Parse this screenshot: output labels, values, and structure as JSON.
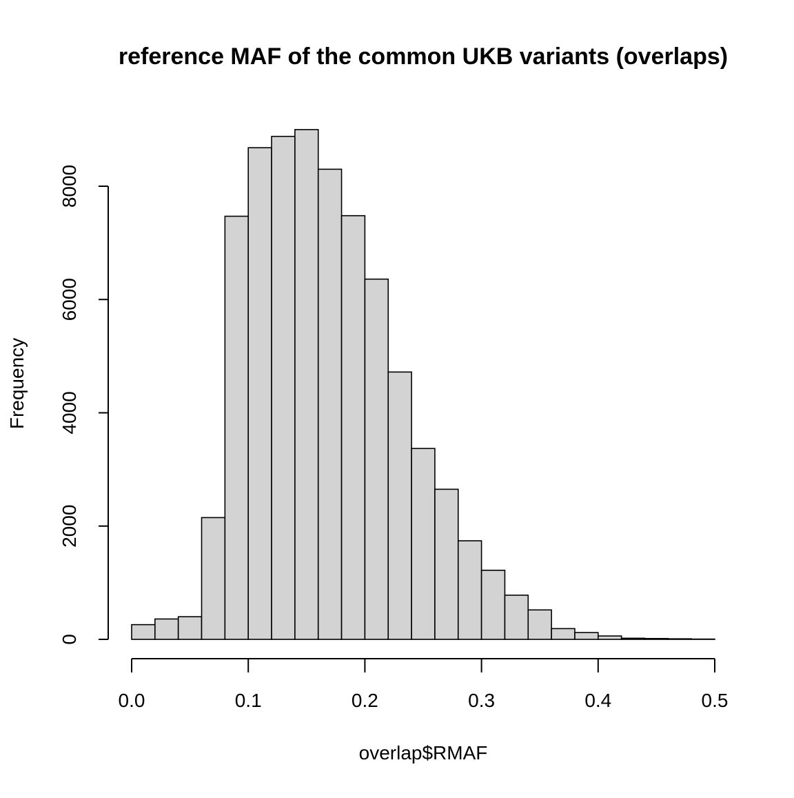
{
  "chart_data": {
    "type": "bar",
    "subtype": "histogram",
    "title": "reference MAF of the common UKB variants (overlaps)",
    "xlabel": "overlap$RMAF",
    "ylabel": "Frequency",
    "bin_edges": [
      0.0,
      0.02,
      0.04,
      0.06,
      0.08,
      0.1,
      0.12,
      0.14,
      0.16,
      0.18,
      0.2,
      0.22,
      0.24,
      0.26,
      0.28,
      0.3,
      0.32,
      0.34,
      0.36,
      0.38,
      0.4,
      0.42,
      0.44,
      0.46,
      0.48,
      0.5
    ],
    "values": [
      260,
      360,
      400,
      2150,
      7470,
      8680,
      8880,
      9000,
      8300,
      7480,
      6360,
      4720,
      3370,
      2650,
      1740,
      1220,
      780,
      520,
      190,
      120,
      60,
      20,
      15,
      10,
      5
    ],
    "xlim": [
      0.0,
      0.5
    ],
    "ylim": [
      0,
      9000
    ],
    "x_ticks": [
      0.0,
      0.1,
      0.2,
      0.3,
      0.4,
      0.5
    ],
    "x_tick_labels": [
      "0.0",
      "0.1",
      "0.2",
      "0.3",
      "0.4",
      "0.5"
    ],
    "y_ticks": [
      0,
      2000,
      4000,
      6000,
      8000
    ],
    "y_tick_labels": [
      "0",
      "2000",
      "4000",
      "6000",
      "8000"
    ],
    "bar_fill": "#d3d3d3",
    "bar_stroke": "#000000",
    "grid": false,
    "legend": "none"
  }
}
